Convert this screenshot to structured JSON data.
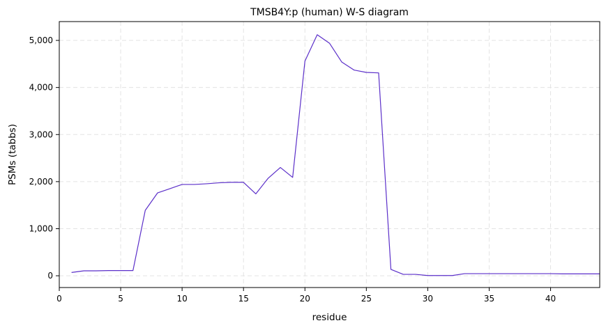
{
  "chart_data": {
    "type": "line",
    "title": "TMSB4Y:p (human) W-S diagram",
    "xlabel": "residue",
    "ylabel": "PSMs (tabbs)",
    "xlim": [
      0,
      44
    ],
    "ylim": [
      -250,
      5400
    ],
    "xticks": [
      0,
      5,
      10,
      15,
      20,
      25,
      30,
      35,
      40
    ],
    "xtick_labels": [
      "0",
      "5",
      "10",
      "15",
      "20",
      "25",
      "30",
      "35",
      "40"
    ],
    "yticks": [
      0,
      1000,
      2000,
      3000,
      4000,
      5000
    ],
    "ytick_labels": [
      "0",
      "1,000",
      "2,000",
      "3,000",
      "4,000",
      "5,000"
    ],
    "grid": true,
    "line_color": "#5b2fc9",
    "series": [
      {
        "x": [
          1,
          2,
          3,
          4,
          5,
          6,
          7,
          8,
          9,
          10,
          11,
          12,
          13,
          14,
          15,
          16,
          17,
          18,
          19,
          20,
          21,
          22,
          23,
          24,
          25,
          26,
          27,
          28,
          29,
          30,
          31,
          32,
          33,
          34,
          35,
          36,
          37,
          38,
          39,
          40,
          41,
          42,
          43,
          44
        ],
        "values": [
          70,
          105,
          105,
          110,
          110,
          110,
          1390,
          1760,
          1850,
          1940,
          1940,
          1955,
          1975,
          1985,
          1985,
          1740,
          2070,
          2300,
          2090,
          4560,
          5120,
          4940,
          4540,
          4370,
          4320,
          4310,
          135,
          30,
          30,
          5,
          5,
          5,
          45,
          45,
          45,
          45,
          45,
          45,
          45,
          45,
          40,
          40,
          40,
          40
        ]
      }
    ]
  }
}
